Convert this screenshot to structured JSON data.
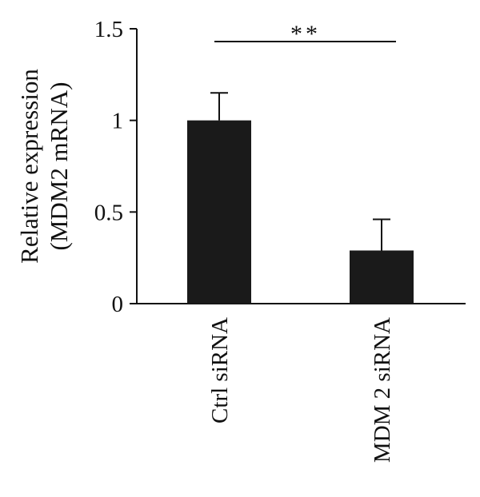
{
  "chart_data": {
    "type": "bar",
    "categories": [
      "Ctrl siRNA",
      "MDM 2 siRNA"
    ],
    "values": [
      1.0,
      0.29
    ],
    "error_bars": [
      0.15,
      0.17
    ],
    "ylim": [
      0,
      1.5
    ],
    "yticks": [
      0,
      0.5,
      1,
      1.5
    ],
    "ytick_labels": [
      "0",
      "0.5",
      "1",
      "1.5"
    ],
    "ylabel": [
      "Relative expression",
      "(MDM2 mRNA)"
    ],
    "xlabel": "",
    "title": "",
    "significance": {
      "between": [
        "Ctrl siRNA",
        "MDM 2 siRNA"
      ],
      "label": "**"
    },
    "bar_color": "#1a1a1a",
    "grid": false,
    "legend": "none"
  }
}
